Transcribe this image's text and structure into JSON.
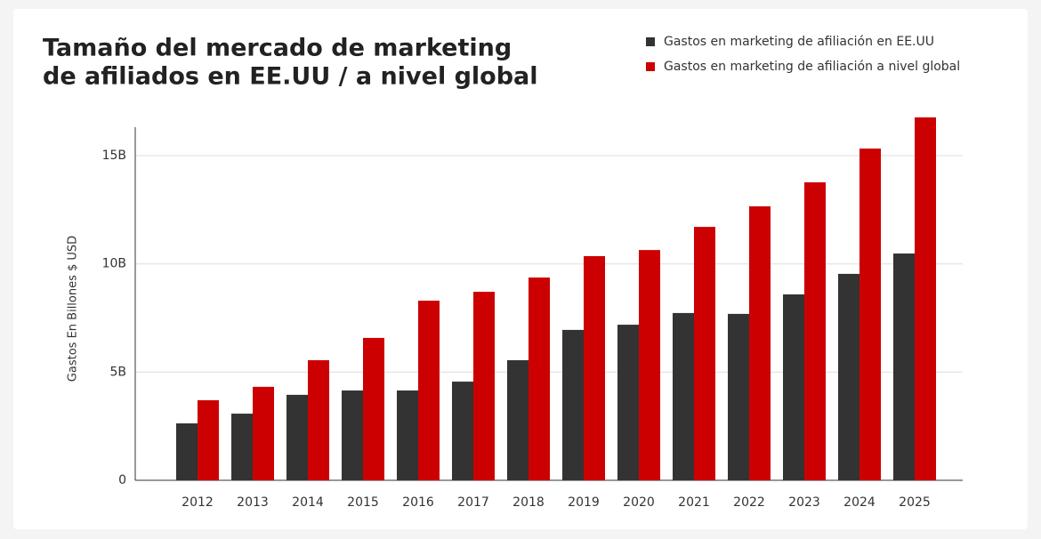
{
  "chart_data": {
    "type": "bar",
    "title": [
      "Tamaño del mercado de marketing",
      "de afiliados en EE.UU / a nivel global"
    ],
    "y_label": "Gastos En Billones $ USD",
    "categories": [
      "2012",
      "2013",
      "2014",
      "2015",
      "2016",
      "2017",
      "2018",
      "2019",
      "2020",
      "2021",
      "2022",
      "2023",
      "2024",
      "2025"
    ],
    "series": [
      {
        "name": "Gastos en marketing de afiliación en EE.UU",
        "color": "#333333",
        "values": [
          2.63,
          3.08,
          3.95,
          4.15,
          4.15,
          4.56,
          5.55,
          6.95,
          7.19,
          7.73,
          7.69,
          8.59,
          9.54,
          10.48
        ]
      },
      {
        "name": "Gastos en marketing de afiliación a nivel global",
        "color": "#cc0000",
        "values": [
          3.7,
          4.32,
          5.55,
          6.58,
          8.3,
          8.71,
          9.37,
          10.36,
          10.64,
          11.71,
          12.66,
          13.77,
          15.33,
          16.77
        ]
      }
    ],
    "ylim": [
      0,
      17
    ],
    "yticks": [
      0,
      {
        "value": 5,
        "label": "5B"
      },
      {
        "value": 10,
        "label": "10B"
      },
      {
        "value": 15,
        "label": "15B"
      }
    ],
    "grid": true,
    "legend": "top-right"
  }
}
